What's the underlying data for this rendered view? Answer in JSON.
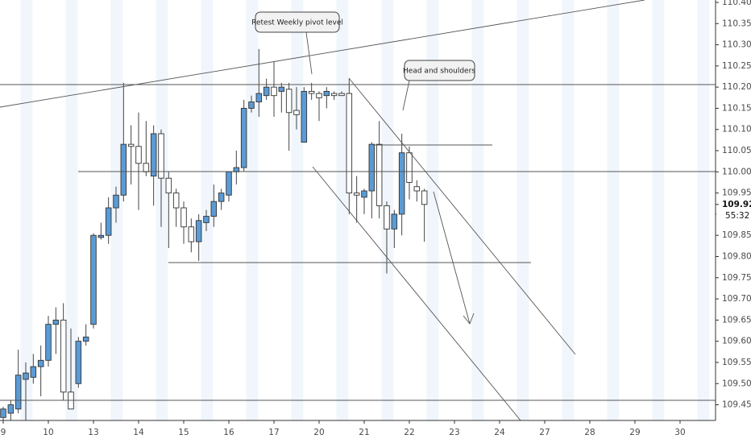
{
  "chart_data": {
    "type": "candlestick",
    "categories": [
      "9",
      null,
      null,
      null,
      null,
      null,
      "10",
      null,
      null,
      null,
      null,
      null,
      "13",
      null,
      null,
      null,
      null,
      null,
      "14",
      null,
      null,
      null,
      null,
      null,
      "15",
      null,
      null,
      null,
      null,
      null,
      "16",
      null,
      null,
      null,
      null,
      null,
      "17",
      null,
      null,
      null,
      null,
      null,
      "20",
      null,
      null,
      null,
      null,
      null,
      "21",
      null,
      null,
      null,
      null,
      null,
      "22",
      null,
      null,
      null,
      null,
      null,
      "23",
      null,
      null,
      null,
      null,
      null,
      "24",
      null,
      null,
      null,
      null,
      null,
      "27",
      null,
      null,
      null,
      null,
      null,
      "28",
      null,
      null,
      null,
      null,
      null,
      "29",
      null,
      null,
      null,
      null,
      null,
      "30",
      null,
      null,
      null,
      null
    ],
    "open": [
      109.42,
      109.43,
      109.44,
      109.51,
      109.515,
      109.54,
      109.555,
      109.64,
      109.65,
      109.48,
      109.5,
      109.6,
      109.64,
      109.845,
      109.85,
      109.915,
      109.945,
      110.065,
      110.06,
      110.02,
      109.99,
      110.09,
      109.985,
      109.95,
      109.915,
      109.87,
      109.835,
      109.88,
      109.895,
      109.93,
      109.945,
      110.0,
      110.01,
      110.15,
      110.165,
      110.18,
      110.2,
      110.19,
      110.195,
      110.145,
      110.07,
      110.19,
      110.185,
      110.18,
      110.185,
      110.185,
      110.185,
      109.95,
      109.94,
      109.955,
      110.065,
      109.92,
      109.865,
      109.9,
      110.045,
      109.965,
      109.955,
      null,
      null,
      null,
      null,
      null,
      null,
      null,
      null,
      null,
      null,
      null,
      null,
      null,
      null,
      null,
      null,
      null,
      null,
      null,
      null,
      null,
      null,
      null,
      null,
      null,
      null,
      null,
      null,
      null,
      null,
      null,
      null,
      null,
      null,
      null,
      null,
      null,
      null
    ],
    "high": [
      109.445,
      109.46,
      109.58,
      109.55,
      109.57,
      109.59,
      109.66,
      109.68,
      109.69,
      109.63,
      109.61,
      109.64,
      109.855,
      109.88,
      109.94,
      109.965,
      110.21,
      110.11,
      110.14,
      110.12,
      110.11,
      110.1,
      110.0,
      109.96,
      109.93,
      109.89,
      109.9,
      109.91,
      109.97,
      109.96,
      110.0,
      110.05,
      110.17,
      110.18,
      110.29,
      110.22,
      110.26,
      110.21,
      110.21,
      110.2,
      110.2,
      110.21,
      110.19,
      110.2,
      110.19,
      110.19,
      110.22,
      109.99,
      109.96,
      110.07,
      110.12,
      109.93,
      109.91,
      110.09,
      110.06,
      109.98,
      109.96,
      null,
      null,
      null,
      null,
      null,
      null,
      null,
      null,
      null,
      null,
      null,
      null,
      null,
      null,
      null,
      null,
      null,
      null,
      null,
      null,
      null,
      null,
      null,
      null,
      null,
      null,
      null,
      null,
      null,
      null,
      null,
      null,
      null,
      null,
      null,
      null,
      null,
      null
    ],
    "low": [
      109.4,
      109.41,
      109.43,
      109.41,
      109.5,
      109.47,
      109.54,
      109.57,
      109.46,
      109.44,
      109.49,
      109.59,
      109.63,
      109.84,
      109.83,
      109.88,
      109.93,
      109.97,
      109.91,
      109.99,
      109.92,
      109.87,
      109.82,
      109.87,
      109.83,
      109.81,
      109.79,
      109.86,
      109.87,
      109.91,
      109.93,
      109.97,
      110.0,
      110.14,
      110.13,
      110.17,
      110.13,
      110.14,
      110.05,
      110.1,
      110.07,
      110.17,
      110.12,
      110.15,
      110.17,
      110.18,
      109.9,
      109.88,
      109.9,
      109.89,
      109.89,
      109.76,
      109.82,
      109.85,
      109.935,
      109.93,
      109.835,
      null,
      null,
      null,
      null,
      null,
      null,
      null,
      null,
      null,
      null,
      null,
      null,
      null,
      null,
      null,
      null,
      null,
      null,
      null,
      null,
      null,
      null,
      null,
      null,
      null,
      null,
      null,
      null,
      null,
      null,
      null,
      null,
      null,
      null,
      null,
      null,
      null,
      null
    ],
    "close": [
      109.44,
      109.45,
      109.52,
      109.525,
      109.54,
      109.555,
      109.64,
      109.65,
      109.48,
      109.44,
      109.6,
      109.61,
      109.85,
      109.85,
      109.915,
      109.945,
      110.065,
      110.06,
      110.02,
      110.0,
      110.09,
      109.985,
      109.95,
      109.915,
      109.87,
      109.835,
      109.885,
      109.895,
      109.93,
      109.95,
      110.0,
      110.01,
      110.15,
      110.165,
      110.185,
      110.2,
      110.18,
      110.2,
      110.14,
      110.135,
      110.19,
      110.185,
      110.175,
      110.19,
      110.18,
      110.18,
      109.95,
      109.945,
      109.955,
      110.065,
      109.92,
      109.865,
      109.9,
      110.045,
      109.975,
      109.955,
      109.923,
      null,
      null,
      null,
      null,
      null,
      null,
      null,
      null,
      null,
      null,
      null,
      null,
      null,
      null,
      null,
      null,
      null,
      null,
      null,
      null,
      null,
      null,
      null,
      null,
      null,
      null,
      null,
      null,
      null,
      null,
      null,
      null,
      null,
      null,
      null,
      null,
      null,
      null
    ],
    "up_color": "#5b9bd5",
    "down_color": "#ffffff",
    "ylim": [
      109.413,
      110.4057
    ],
    "yticks": [
      {
        "value": 110.4,
        "label": "110.400"
      },
      {
        "value": 110.35,
        "label": "110.350"
      },
      {
        "value": 110.3,
        "label": "110.300"
      },
      {
        "value": 110.25,
        "label": "110.250"
      },
      {
        "value": 110.2,
        "label": "110.200"
      },
      {
        "value": 110.15,
        "label": "110.150"
      },
      {
        "value": 110.1,
        "label": "110.100"
      },
      {
        "value": 110.05,
        "label": "110.050"
      },
      {
        "value": 110.0,
        "label": "110.000"
      },
      {
        "value": 109.95,
        "label": "109.950"
      },
      {
        "value": 109.9,
        "label": "109.900"
      },
      {
        "value": 109.85,
        "label": "109.850"
      },
      {
        "value": 109.8,
        "label": "109.800"
      },
      {
        "value": 109.75,
        "label": "109.750"
      },
      {
        "value": 109.7,
        "label": "109.700"
      },
      {
        "value": 109.65,
        "label": "109.650"
      },
      {
        "value": 109.6,
        "label": "109.600"
      },
      {
        "value": 109.55,
        "label": "109.550"
      },
      {
        "value": 109.5,
        "label": "109.500"
      },
      {
        "value": 109.45,
        "label": "109.450"
      }
    ],
    "last_price": 109.923,
    "countdown": "55:32",
    "annotations": [
      "Retest Weekly pivot level",
      "Head and shoulders"
    ]
  }
}
